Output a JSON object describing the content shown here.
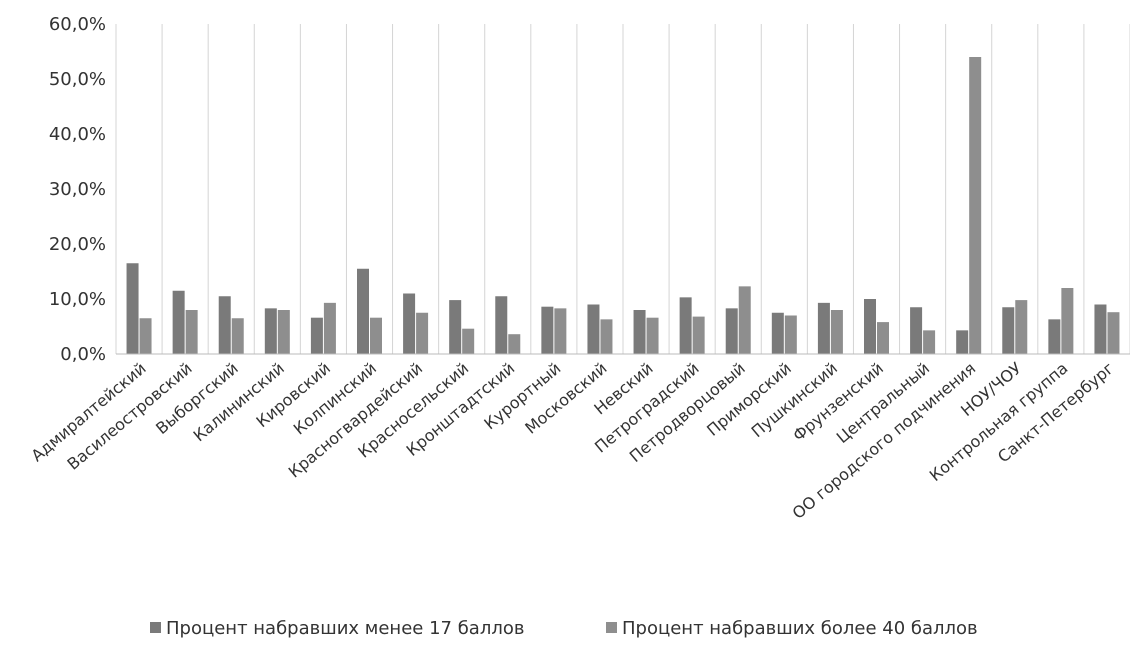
{
  "chart_data": {
    "type": "bar",
    "title": "",
    "xlabel": "",
    "ylabel": "",
    "ylim": [
      0,
      60
    ],
    "y_ticks": [
      "0,0%",
      "10,0%",
      "20,0%",
      "30,0%",
      "40,0%",
      "50,0%",
      "60,0%"
    ],
    "grid": "vertical separators between categories",
    "legend_position": "bottom",
    "categories": [
      "Адмиралтейский",
      "Василеостровский",
      "Выборгский",
      "Калининский",
      "Кировский",
      "Колпинский",
      "Красногвардейский",
      "Красносельский",
      "Кронштадтский",
      "Курортный",
      "Московский",
      "Невский",
      "Петроградский",
      "Петродворцовый",
      "Приморский",
      "Пушкинский",
      "Фрунзенский",
      "Центральный",
      "ОО городского подчинения",
      "НОУ/ЧОУ",
      "Контрольная группа",
      "Санкт-Петербург"
    ],
    "series": [
      {
        "name": "Процент набравших менее 17 баллов",
        "color": "#7a7a7a",
        "values": [
          16.5,
          11.5,
          10.5,
          8.3,
          6.6,
          15.5,
          11.0,
          9.8,
          10.5,
          8.6,
          9.0,
          8.0,
          10.3,
          8.3,
          7.5,
          9.3,
          10.0,
          8.5,
          4.3,
          8.5,
          6.3,
          9.0
        ]
      },
      {
        "name": "Процент набравших более 40 баллов",
        "color": "#8e8e8e",
        "values": [
          6.5,
          8.0,
          6.5,
          8.0,
          9.3,
          6.6,
          7.5,
          4.6,
          3.6,
          8.3,
          6.3,
          6.6,
          6.8,
          12.3,
          7.0,
          8.0,
          5.8,
          4.3,
          54.0,
          9.8,
          12.0,
          7.6
        ]
      }
    ]
  }
}
